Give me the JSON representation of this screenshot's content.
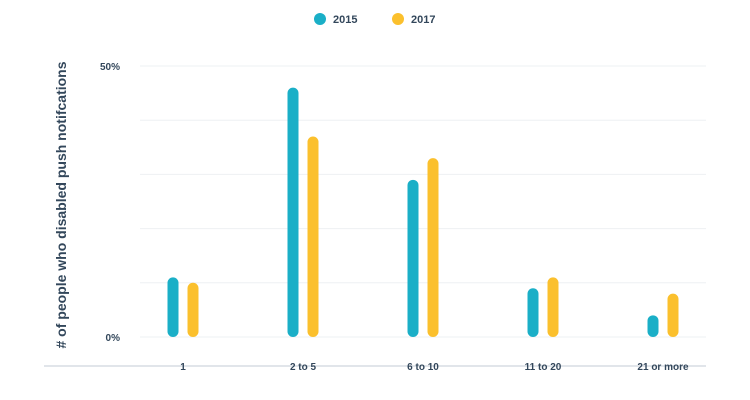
{
  "chart_data": {
    "type": "bar",
    "categories": [
      "1",
      "2 to 5",
      "6 to 10",
      "11 to 20",
      "21 or more"
    ],
    "series": [
      {
        "name": "2015",
        "values": [
          11,
          46,
          29,
          9,
          4
        ]
      },
      {
        "name": "2017",
        "values": [
          10,
          37,
          33,
          11,
          8
        ]
      }
    ],
    "ylabel": "# of people who disabled push notifcations",
    "xlabel": "",
    "ylim": [
      0,
      50
    ],
    "yticks": [
      {
        "value": 0,
        "label": "0%"
      },
      {
        "value": 50,
        "label": "50%"
      }
    ],
    "legend_position": "top-center",
    "grid": true
  },
  "colors": {
    "series": [
      "#1aafc7",
      "#fbc02d"
    ],
    "grid": "#eef0f3",
    "baseline": "#e1e5ea",
    "text": "#33475b"
  }
}
